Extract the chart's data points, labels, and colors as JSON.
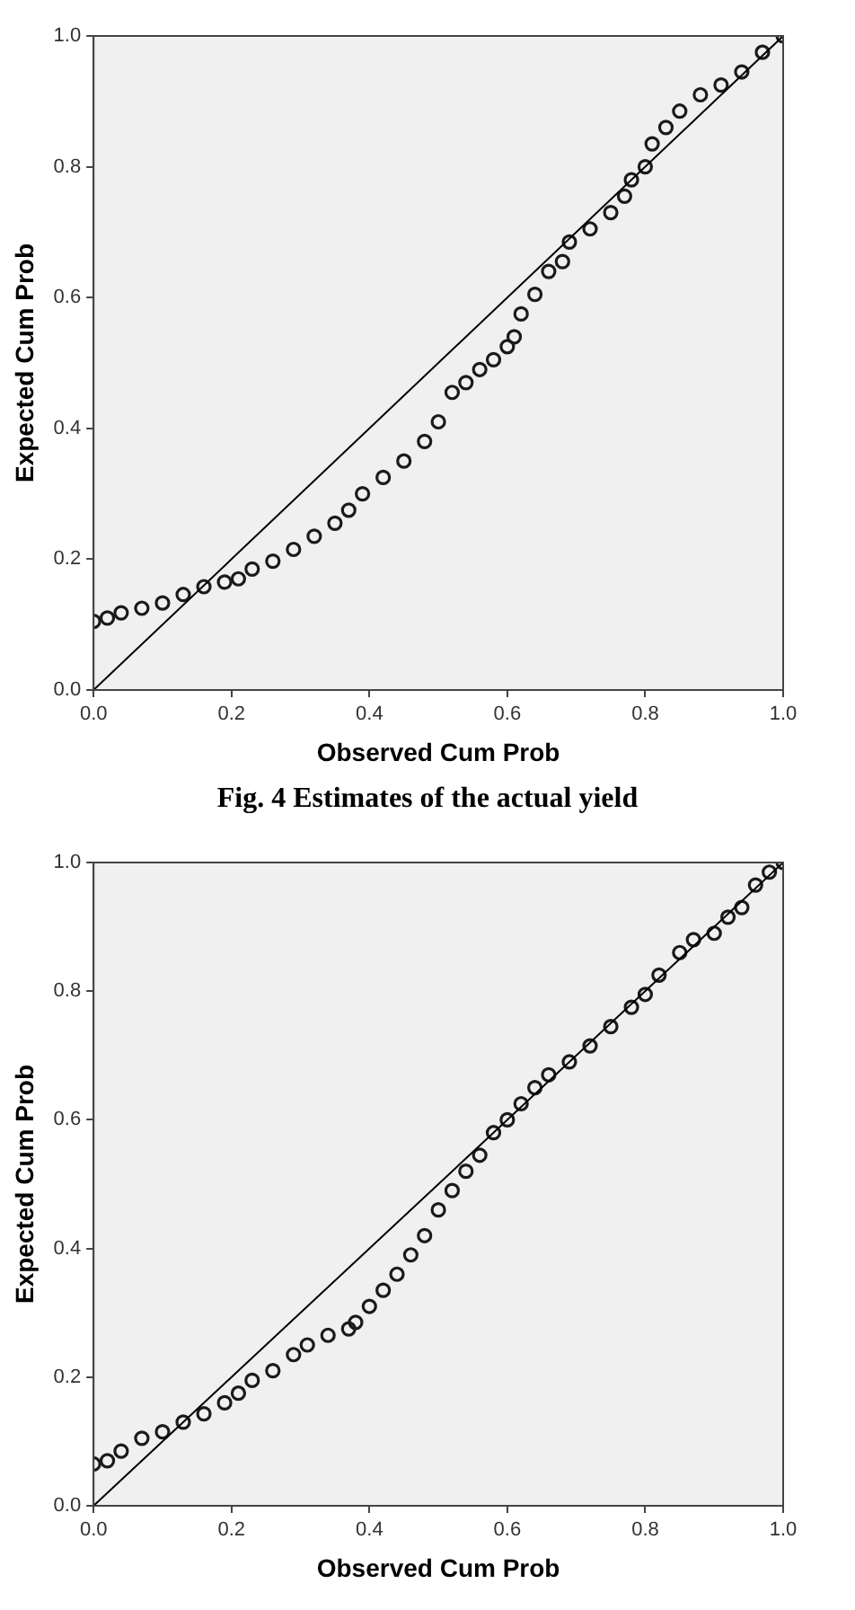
{
  "chart_data": [
    {
      "type": "scatter",
      "xlabel": "Observed Cum Prob",
      "ylabel": "Expected Cum Prob",
      "xlim": [
        0,
        1
      ],
      "ylim": [
        0,
        1
      ],
      "xticks": [
        {
          "value": 0,
          "label": "0.0"
        },
        {
          "value": 0.2,
          "label": "0.2"
        },
        {
          "value": 0.4,
          "label": "0.4"
        },
        {
          "value": 0.6,
          "label": "0.6"
        },
        {
          "value": 0.8,
          "label": "0.8"
        },
        {
          "value": 1,
          "label": "1.0"
        }
      ],
      "yticks": [
        {
          "value": 0,
          "label": "0.0"
        },
        {
          "value": 0.2,
          "label": "0.2"
        },
        {
          "value": 0.4,
          "label": "0.4"
        },
        {
          "value": 0.6,
          "label": "0.6"
        },
        {
          "value": 0.8,
          "label": "0.8"
        },
        {
          "value": 1,
          "label": "1.0"
        }
      ],
      "annotations": [
        "Fig. 4 Estimates of the actual yield"
      ],
      "series": [
        {
          "marker": "circle",
          "color": "#1a1a1a",
          "x": [
            0,
            0.02,
            0.04,
            0.07,
            0.1,
            0.13,
            0.16,
            0.19,
            0.21,
            0.23,
            0.26,
            0.29,
            0.32,
            0.35,
            0.37,
            0.39,
            0.42,
            0.45,
            0.48,
            0.5,
            0.52,
            0.54,
            0.56,
            0.58,
            0.6,
            0.61,
            0.62,
            0.64,
            0.66,
            0.68,
            0.69,
            0.72,
            0.75,
            0.77,
            0.78,
            0.8,
            0.81,
            0.83,
            0.85,
            0.88,
            0.91,
            0.94,
            0.97,
            1
          ],
          "values": [
            0.105,
            0.11,
            0.118,
            0.125,
            0.133,
            0.146,
            0.158,
            0.165,
            0.17,
            0.185,
            0.197,
            0.215,
            0.235,
            0.255,
            0.275,
            0.3,
            0.325,
            0.35,
            0.38,
            0.41,
            0.455,
            0.47,
            0.49,
            0.505,
            0.525,
            0.54,
            0.575,
            0.605,
            0.64,
            0.655,
            0.685,
            0.705,
            0.73,
            0.755,
            0.78,
            0.8,
            0.835,
            0.86,
            0.885,
            0.91,
            0.925,
            0.945,
            0.975,
            1
          ]
        },
        {
          "type": "line",
          "color": "#000000",
          "x": [
            0,
            1
          ],
          "values": [
            0,
            1
          ]
        }
      ]
    },
    {
      "type": "scatter",
      "xlabel": "Observed Cum Prob",
      "ylabel": "Expected Cum Prob",
      "xlim": [
        0,
        1
      ],
      "ylim": [
        0,
        1
      ],
      "xticks": [
        {
          "value": 0,
          "label": "0.0"
        },
        {
          "value": 0.2,
          "label": "0.2"
        },
        {
          "value": 0.4,
          "label": "0.4"
        },
        {
          "value": 0.6,
          "label": "0.6"
        },
        {
          "value": 0.8,
          "label": "0.8"
        },
        {
          "value": 1,
          "label": "1.0"
        }
      ],
      "yticks": [
        {
          "value": 0,
          "label": "0.0"
        },
        {
          "value": 0.2,
          "label": "0.2"
        },
        {
          "value": 0.4,
          "label": "0.4"
        },
        {
          "value": 0.6,
          "label": "0.6"
        },
        {
          "value": 0.8,
          "label": "0.8"
        },
        {
          "value": 1,
          "label": "1.0"
        }
      ],
      "series": [
        {
          "marker": "circle",
          "color": "#1a1a1a",
          "x": [
            0,
            0.02,
            0.04,
            0.07,
            0.1,
            0.13,
            0.16,
            0.19,
            0.21,
            0.23,
            0.26,
            0.29,
            0.31,
            0.34,
            0.37,
            0.38,
            0.4,
            0.42,
            0.44,
            0.46,
            0.48,
            0.5,
            0.52,
            0.54,
            0.56,
            0.58,
            0.6,
            0.62,
            0.64,
            0.66,
            0.69,
            0.72,
            0.75,
            0.78,
            0.8,
            0.82,
            0.85,
            0.87,
            0.9,
            0.92,
            0.94,
            0.96,
            0.98,
            1
          ],
          "values": [
            0.065,
            0.07,
            0.085,
            0.105,
            0.115,
            0.13,
            0.143,
            0.16,
            0.175,
            0.195,
            0.21,
            0.235,
            0.25,
            0.265,
            0.275,
            0.285,
            0.31,
            0.335,
            0.36,
            0.39,
            0.42,
            0.46,
            0.49,
            0.52,
            0.545,
            0.58,
            0.6,
            0.625,
            0.65,
            0.67,
            0.69,
            0.715,
            0.745,
            0.775,
            0.795,
            0.825,
            0.86,
            0.88,
            0.89,
            0.915,
            0.93,
            0.965,
            0.985,
            1
          ]
        },
        {
          "type": "line",
          "color": "#000000",
          "x": [
            0,
            1
          ],
          "values": [
            0,
            1
          ]
        }
      ]
    }
  ]
}
